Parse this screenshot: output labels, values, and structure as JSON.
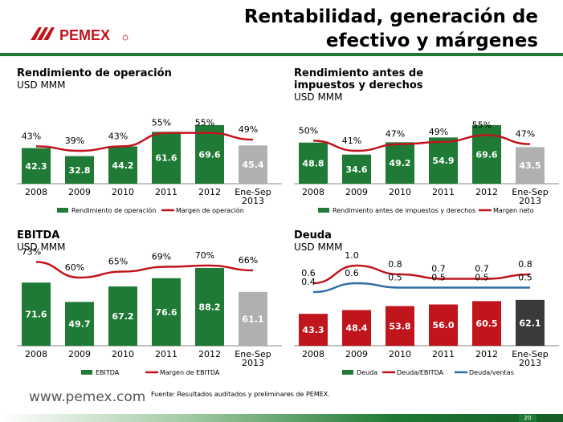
{
  "title": "Rentabilidad, generación de efectivo y márgenes",
  "logo_text": "PEMEX",
  "footer": {
    "url": "www.pemex.com",
    "source": "Fuente: Resultados auditados y preliminares de PEMEX.",
    "page": "20"
  },
  "colors": {
    "bar": "#1e7a34",
    "bar_highlight": "#b0b0b0",
    "deuda_last": "#3a3a3a",
    "line": "#c0151c",
    "line2": "#2e6ea6"
  },
  "chart_data": [
    {
      "type": "bar",
      "title": "Rendimiento de operación",
      "subtitle": "USD MMM",
      "categories": [
        "2008",
        "2009",
        "2010",
        "2011",
        "2012",
        "Ene-Sep\n2013"
      ],
      "series": [
        {
          "name": "Rendimiento de operación",
          "kind": "bar",
          "values": [
            42.3,
            32.8,
            44.2,
            61.6,
            69.6,
            45.4
          ]
        },
        {
          "name": "Margen de operación",
          "kind": "line",
          "values": [
            43,
            39,
            43,
            55,
            55,
            49
          ],
          "labels": [
            "43%",
            "39%",
            "43%",
            "55%",
            "55%",
            "49%"
          ]
        }
      ]
    },
    {
      "type": "bar",
      "title": "Rendimiento antes de impuestos y derechos",
      "subtitle": "USD MMM",
      "categories": [
        "2008",
        "2009",
        "2010",
        "2011",
        "2012",
        "Ene-Sep\n2013"
      ],
      "series": [
        {
          "name": "Rendimiento antes de impuestos y derechos",
          "kind": "bar",
          "values": [
            48.8,
            34.6,
            49.2,
            54.9,
            69.6,
            43.5
          ]
        },
        {
          "name": "Margen neto",
          "kind": "line",
          "values": [
            50,
            41,
            47,
            49,
            55,
            47
          ],
          "labels": [
            "50%",
            "41%",
            "47%",
            "49%",
            "55%",
            "47%"
          ]
        }
      ]
    },
    {
      "type": "bar",
      "title": "EBITDA",
      "subtitle": "USD MMM",
      "categories": [
        "2008",
        "2009",
        "2010",
        "2011",
        "2012",
        "Ene-Sep\n2013"
      ],
      "series": [
        {
          "name": "EBITDA",
          "kind": "bar",
          "values": [
            71.6,
            49.7,
            67.2,
            76.6,
            88.2,
            61.1
          ]
        },
        {
          "name": "Margen de EBITDA",
          "kind": "line",
          "values": [
            73,
            60,
            65,
            69,
            70,
            66
          ],
          "labels": [
            "73%",
            "60%",
            "65%",
            "69%",
            "70%",
            "66%"
          ]
        }
      ]
    },
    {
      "type": "bar",
      "title": "Deuda",
      "subtitle": "USD MMM",
      "categories": [
        "2008",
        "2009",
        "2010",
        "2011",
        "2012",
        "Ene-Sep\n2013"
      ],
      "series": [
        {
          "name": "Deuda",
          "kind": "bar",
          "values": [
            43.3,
            48.4,
            53.8,
            56.0,
            60.5,
            62.1
          ]
        },
        {
          "name": "Deuda/EBITDA",
          "kind": "line",
          "values": [
            0.6,
            1.0,
            0.8,
            0.7,
            0.7,
            0.8
          ],
          "labels": [
            "0.6",
            "1.0",
            "0.8",
            "0.7",
            "0.7",
            "0.8"
          ]
        },
        {
          "name": "Deuda/ventas",
          "kind": "line",
          "values": [
            0.4,
            0.6,
            0.5,
            0.5,
            0.5,
            0.5
          ],
          "labels": [
            "0.4",
            "0.6",
            "0.5",
            "0.5",
            "0.5",
            "0.5"
          ]
        }
      ]
    }
  ]
}
